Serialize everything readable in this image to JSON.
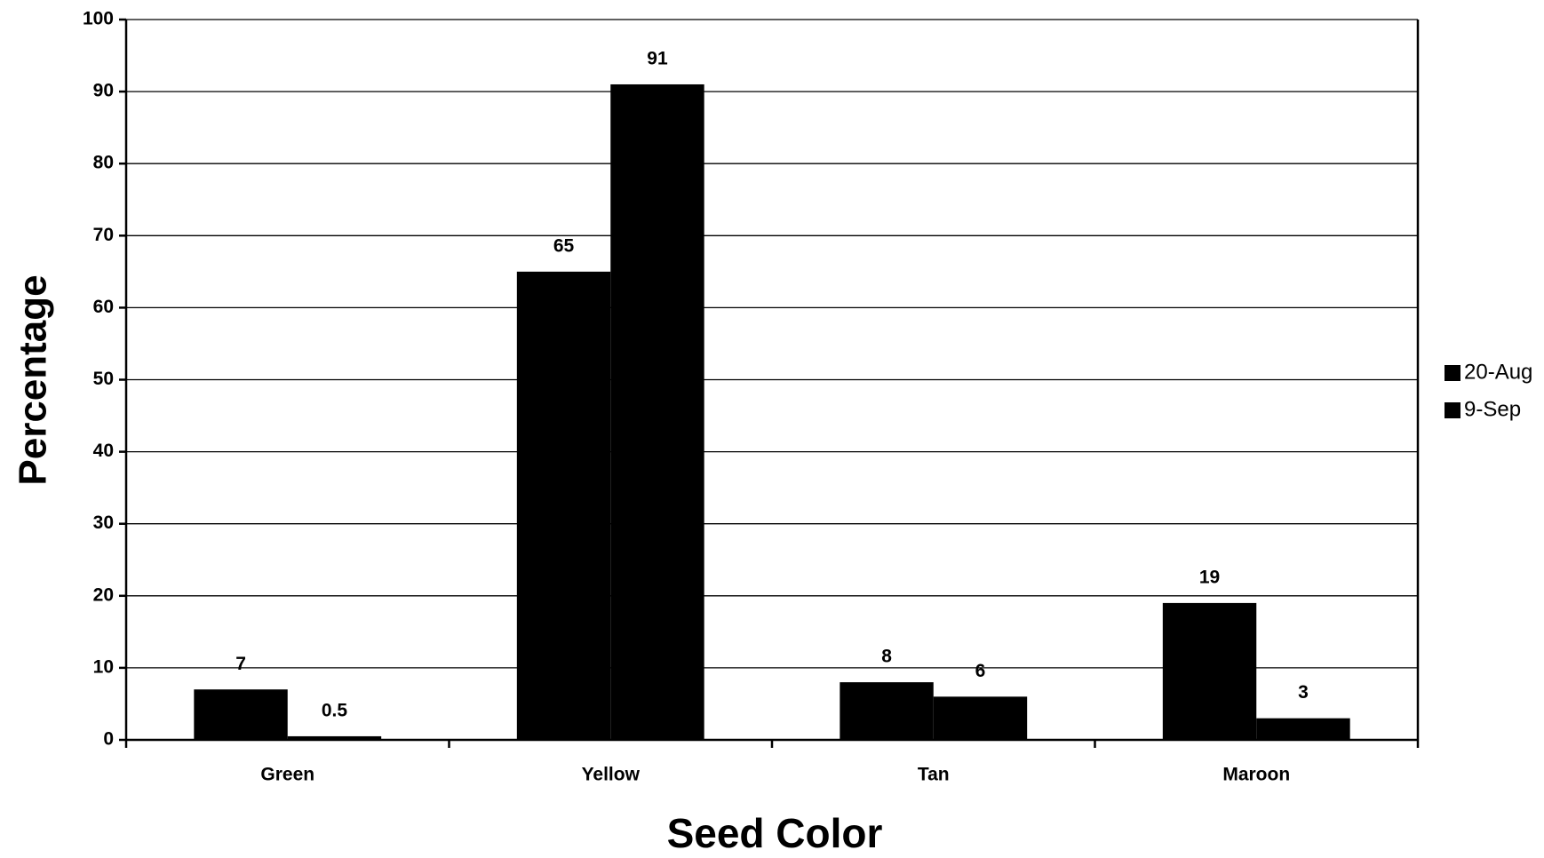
{
  "chart_data": {
    "type": "bar",
    "xlabel": "Seed Color",
    "ylabel": "Percentage",
    "categories": [
      "Green",
      "Yellow",
      "Tan",
      "Maroon"
    ],
    "series": [
      {
        "name": "20-Aug",
        "color": "#000000",
        "values": [
          7,
          65,
          8,
          19
        ]
      },
      {
        "name": "9-Sep",
        "color": "#000000",
        "values": [
          0.5,
          91,
          6,
          3
        ]
      }
    ],
    "ylim": [
      0,
      100
    ],
    "yticks": [
      0,
      10,
      20,
      30,
      40,
      50,
      60,
      70,
      80,
      90,
      100
    ],
    "grid": true,
    "legend": "right"
  }
}
